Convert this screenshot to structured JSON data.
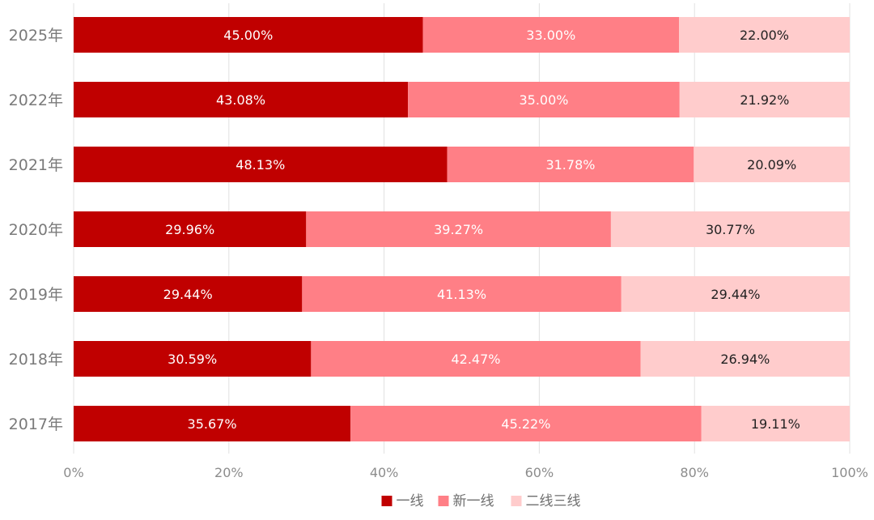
{
  "chart_data": {
    "type": "bar",
    "orientation": "horizontal",
    "stacked": "percent",
    "categories": [
      "2025年",
      "2022年",
      "2021年",
      "2020年",
      "2019年",
      "2018年",
      "2017年"
    ],
    "series": [
      {
        "name": "一线",
        "color": "#c00000",
        "label_color": "#ffffff",
        "values": [
          45.0,
          43.08,
          48.13,
          29.96,
          29.44,
          30.59,
          35.67
        ],
        "labels": [
          "45.00%",
          "43.08%",
          "48.13%",
          "29.96%",
          "29.44%",
          "30.59%",
          "35.67%"
        ]
      },
      {
        "name": "新一线",
        "color": "#ff7f86",
        "label_color": "#ffffff",
        "values": [
          33.0,
          35.0,
          31.78,
          39.27,
          41.13,
          42.47,
          45.22
        ],
        "labels": [
          "33.00%",
          "35.00%",
          "31.78%",
          "39.27%",
          "41.13%",
          "42.47%",
          "45.22%"
        ]
      },
      {
        "name": "二线三线",
        "color": "#ffcccc",
        "label_color": "#222222",
        "values": [
          22.0,
          21.92,
          20.09,
          30.77,
          29.44,
          26.94,
          19.11
        ],
        "labels": [
          "22.00%",
          "21.92%",
          "20.09%",
          "30.77%",
          "29.44%",
          "26.94%",
          "19.11%"
        ]
      }
    ],
    "x_ticks": [
      "0%",
      "20%",
      "40%",
      "60%",
      "80%",
      "100%"
    ],
    "xlim": [
      0,
      100
    ],
    "grid": true,
    "legend": "bottom-center",
    "gridline_color": "#e0e0e0"
  }
}
